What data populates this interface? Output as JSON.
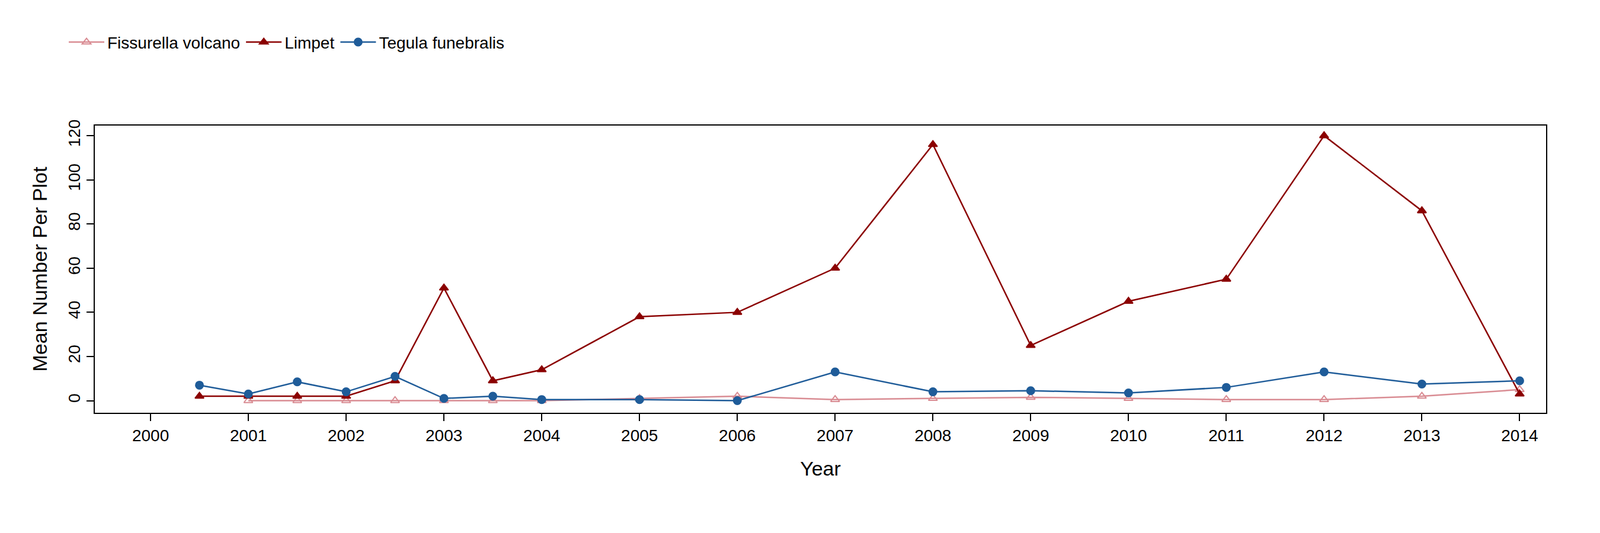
{
  "chart_data": {
    "type": "line",
    "x_label": "Year",
    "y_label": "Mean Number Per Plot",
    "x": [
      2000.5,
      2001,
      2001.5,
      2002,
      2002.5,
      2003,
      2003.5,
      2004,
      2005,
      2006,
      2007,
      2008,
      2009,
      2010,
      2011,
      2012,
      2013,
      2014
    ],
    "series": [
      {
        "name": "Fissurella volcano",
        "color": "#d98c93",
        "marker": "triangle-open",
        "values": [
          null,
          0,
          0,
          0,
          0,
          0,
          0,
          0,
          1,
          2,
          0.5,
          1,
          1.5,
          1,
          0.5,
          0.5,
          2,
          5
        ]
      },
      {
        "name": "Limpet",
        "color": "#8b0000",
        "marker": "triangle",
        "values": [
          2,
          2,
          2,
          2,
          9,
          51,
          9,
          14,
          38,
          40,
          60,
          116,
          25,
          45,
          55,
          120,
          86,
          3
        ]
      },
      {
        "name": "Tegula funebralis",
        "color": "#1f5c99",
        "marker": "circle",
        "values": [
          7,
          3,
          8.5,
          4,
          11,
          1,
          2,
          0.5,
          0.5,
          0,
          13,
          4,
          4.5,
          3.5,
          6,
          13,
          7.5,
          9
        ]
      }
    ],
    "xlim": [
      1999.43,
      2014.27
    ],
    "xticks": [
      2000,
      2001,
      2002,
      2003,
      2004,
      2005,
      2006,
      2007,
      2008,
      2009,
      2010,
      2011,
      2012,
      2013,
      2014
    ],
    "ylim": [
      -5.5,
      124.6
    ],
    "yticks": [
      0,
      20,
      40,
      60,
      80,
      100,
      120
    ],
    "grid": false,
    "legend": "top-left"
  }
}
